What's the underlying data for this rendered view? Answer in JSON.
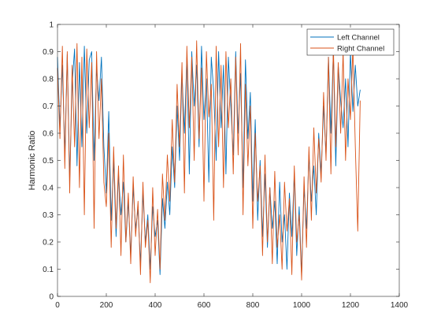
{
  "chart_data": {
    "type": "line",
    "title": "",
    "xlabel": "",
    "ylabel": "Harmonic Ratio",
    "xlim": [
      0,
      1400
    ],
    "ylim": [
      0,
      1
    ],
    "x_ticks": [
      0,
      200,
      400,
      600,
      800,
      1000,
      1200,
      1400
    ],
    "y_ticks": [
      0,
      0.1,
      0.2,
      0.3,
      0.4,
      0.5,
      0.6,
      0.7,
      0.8,
      0.9,
      1
    ],
    "x_tick_labels": [
      "0",
      "200",
      "400",
      "600",
      "800",
      "1000",
      "1200",
      "1400"
    ],
    "y_tick_labels": [
      "0",
      "0.1",
      "0.2",
      "0.3",
      "0.4",
      "0.5",
      "0.6",
      "0.7",
      "0.8",
      "0.9",
      "1"
    ],
    "grid": false,
    "legend_position": "top-right",
    "sampling_note": "approximate envelope of noisy signals, sampled every ~10 frames",
    "x": [
      0,
      10,
      20,
      30,
      40,
      50,
      60,
      70,
      80,
      90,
      100,
      110,
      120,
      130,
      140,
      150,
      160,
      170,
      180,
      190,
      200,
      210,
      220,
      230,
      240,
      250,
      260,
      270,
      280,
      290,
      300,
      310,
      320,
      330,
      340,
      350,
      360,
      370,
      380,
      390,
      400,
      410,
      420,
      430,
      440,
      450,
      460,
      470,
      480,
      490,
      500,
      510,
      520,
      530,
      540,
      550,
      560,
      570,
      580,
      590,
      600,
      610,
      620,
      630,
      640,
      650,
      660,
      670,
      680,
      690,
      700,
      710,
      720,
      730,
      740,
      750,
      760,
      770,
      780,
      790,
      800,
      810,
      820,
      830,
      840,
      850,
      860,
      870,
      880,
      890,
      900,
      910,
      920,
      930,
      940,
      950,
      960,
      970,
      980,
      990,
      1000,
      1010,
      1020,
      1030,
      1040,
      1050,
      1060,
      1070,
      1080,
      1090,
      1100,
      1110,
      1120,
      1130,
      1140,
      1150,
      1160,
      1170,
      1180,
      1190,
      1200,
      1210,
      1220,
      1230,
      1240
    ],
    "series": [
      {
        "name": "Left Channel",
        "color": "#0072BD",
        "values": [
          0.88,
          0.62,
          0.85,
          0.52,
          0.89,
          0.43,
          0.78,
          0.91,
          0.48,
          0.86,
          0.55,
          0.92,
          0.6,
          0.87,
          0.9,
          0.5,
          0.84,
          0.72,
          0.88,
          0.55,
          0.38,
          0.68,
          0.28,
          0.5,
          0.22,
          0.45,
          0.3,
          0.42,
          0.2,
          0.35,
          0.15,
          0.4,
          0.25,
          0.32,
          0.12,
          0.38,
          0.2,
          0.3,
          0.1,
          0.33,
          0.22,
          0.28,
          0.08,
          0.36,
          0.25,
          0.42,
          0.3,
          0.55,
          0.4,
          0.7,
          0.5,
          0.82,
          0.6,
          0.88,
          0.45,
          0.9,
          0.7,
          0.85,
          0.55,
          0.92,
          0.65,
          0.8,
          0.42,
          0.88,
          0.75,
          0.5,
          0.9,
          0.62,
          0.85,
          0.45,
          0.88,
          0.7,
          0.52,
          0.9,
          0.6,
          0.82,
          0.4,
          0.87,
          0.58,
          0.75,
          0.35,
          0.65,
          0.28,
          0.5,
          0.22,
          0.45,
          0.18,
          0.4,
          0.25,
          0.35,
          0.12,
          0.42,
          0.2,
          0.3,
          0.1,
          0.38,
          0.22,
          0.45,
          0.15,
          0.33,
          0.08,
          0.4,
          0.25,
          0.52,
          0.35,
          0.48,
          0.3,
          0.6,
          0.45,
          0.7,
          0.52,
          0.88,
          0.6,
          0.9,
          0.48,
          0.85,
          0.72,
          0.62,
          0.8,
          0.55,
          0.9,
          0.68,
          0.85,
          0.7,
          0.76
        ]
      },
      {
        "name": "Right Channel",
        "color": "#D95319",
        "values": [
          0.84,
          0.58,
          0.92,
          0.47,
          0.9,
          0.38,
          0.85,
          0.55,
          0.93,
          0.4,
          0.88,
          0.3,
          0.91,
          0.62,
          0.86,
          0.25,
          0.9,
          0.58,
          0.8,
          0.42,
          0.33,
          0.6,
          0.18,
          0.55,
          0.25,
          0.48,
          0.15,
          0.52,
          0.2,
          0.38,
          0.12,
          0.44,
          0.22,
          0.35,
          0.08,
          0.42,
          0.18,
          0.28,
          0.05,
          0.4,
          0.15,
          0.32,
          0.1,
          0.45,
          0.28,
          0.52,
          0.35,
          0.65,
          0.42,
          0.78,
          0.55,
          0.86,
          0.38,
          0.92,
          0.62,
          0.88,
          0.5,
          0.94,
          0.58,
          0.84,
          0.35,
          0.9,
          0.66,
          0.78,
          0.28,
          0.92,
          0.55,
          0.85,
          0.4,
          0.9,
          0.62,
          0.8,
          0.45,
          0.88,
          0.52,
          0.93,
          0.3,
          0.78,
          0.48,
          0.7,
          0.25,
          0.6,
          0.35,
          0.48,
          0.15,
          0.52,
          0.2,
          0.4,
          0.12,
          0.46,
          0.18,
          0.3,
          0.1,
          0.42,
          0.24,
          0.36,
          0.08,
          0.48,
          0.2,
          0.3,
          0.06,
          0.44,
          0.18,
          0.55,
          0.28,
          0.62,
          0.38,
          0.58,
          0.42,
          0.75,
          0.5,
          0.88,
          0.45,
          0.92,
          0.55,
          0.86,
          0.6,
          0.9,
          0.5,
          0.8,
          0.65,
          0.92,
          0.55,
          0.24,
          0.72
        ]
      }
    ]
  }
}
